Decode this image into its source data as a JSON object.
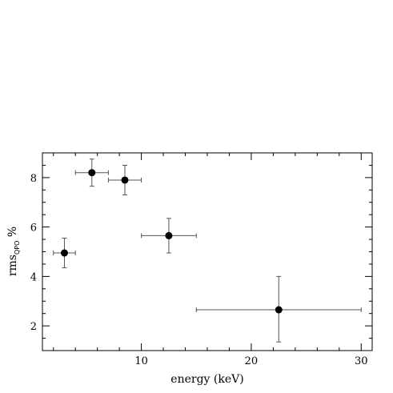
{
  "chart_data": {
    "type": "scatter",
    "title": "",
    "xlabel": "energy (keV)",
    "ylabel": {
      "main": "rms",
      "subscript": "QPO",
      "suffix": " %"
    },
    "xlim": [
      1,
      31
    ],
    "ylim": [
      1,
      9
    ],
    "xticks_major": [
      10,
      20,
      30
    ],
    "yticks_major": [
      2,
      4,
      6,
      8
    ],
    "grid": false,
    "points": [
      {
        "x": 3.0,
        "xerr_low": 1.0,
        "xerr_high": 1.0,
        "y": 4.95,
        "yerr_low": 0.6,
        "yerr_high": 0.6
      },
      {
        "x": 5.5,
        "xerr_low": 1.5,
        "xerr_high": 1.5,
        "y": 8.2,
        "yerr_low": 0.55,
        "yerr_high": 0.55
      },
      {
        "x": 8.5,
        "xerr_low": 1.5,
        "xerr_high": 1.5,
        "y": 7.9,
        "yerr_low": 0.6,
        "yerr_high": 0.6
      },
      {
        "x": 12.5,
        "xerr_low": 2.5,
        "xerr_high": 2.5,
        "y": 5.65,
        "yerr_low": 0.7,
        "yerr_high": 0.7
      },
      {
        "x": 22.5,
        "xerr_low": 7.5,
        "xerr_high": 7.5,
        "y": 2.65,
        "yerr_low": 1.3,
        "yerr_high": 1.35
      }
    ]
  }
}
